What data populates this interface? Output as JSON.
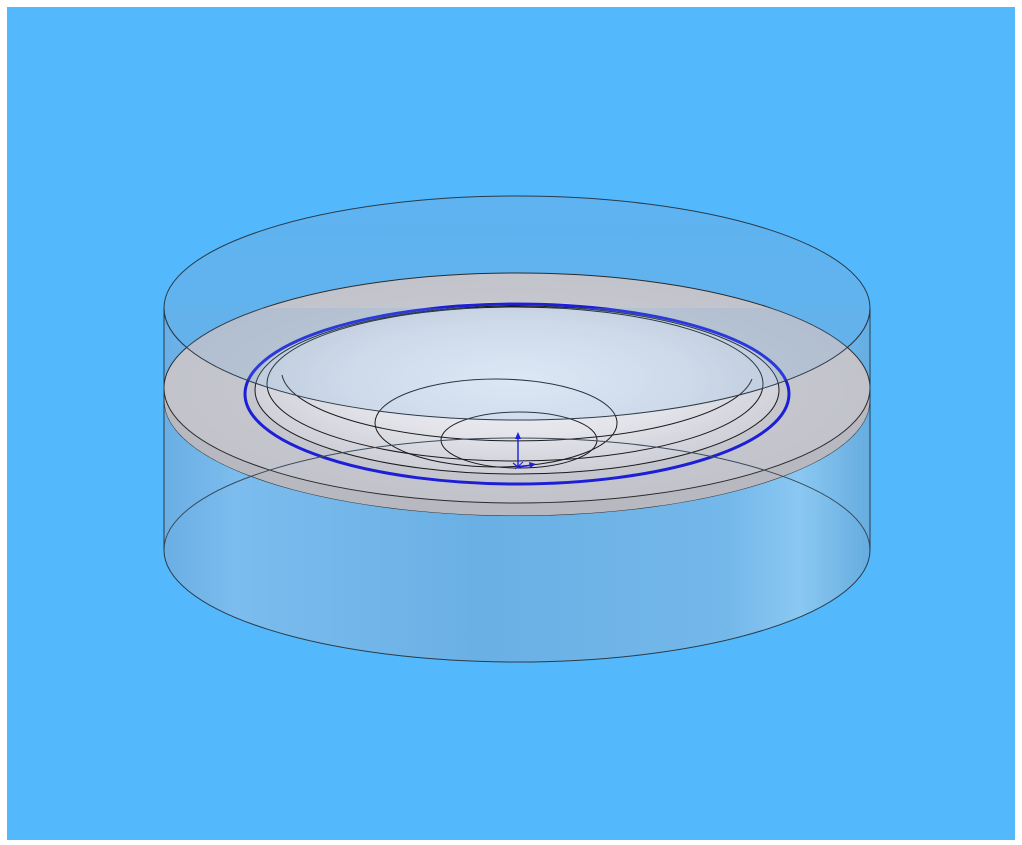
{
  "viewport": {
    "background_color": "#53b8fc",
    "border_color": "#ffffff"
  },
  "model": {
    "outer_cylinder_fill": "#79b6e6",
    "outer_cylinder_edge": "#3a4a5a",
    "disc_fill": "#c5c7cf",
    "dish_fill": "#e2e3ea",
    "edge_color": "#1b1b1b",
    "selected_edge_color": "#1d1fd6"
  },
  "triad": {
    "icon": "origin-triad-icon",
    "color": "#1d1fd6"
  }
}
